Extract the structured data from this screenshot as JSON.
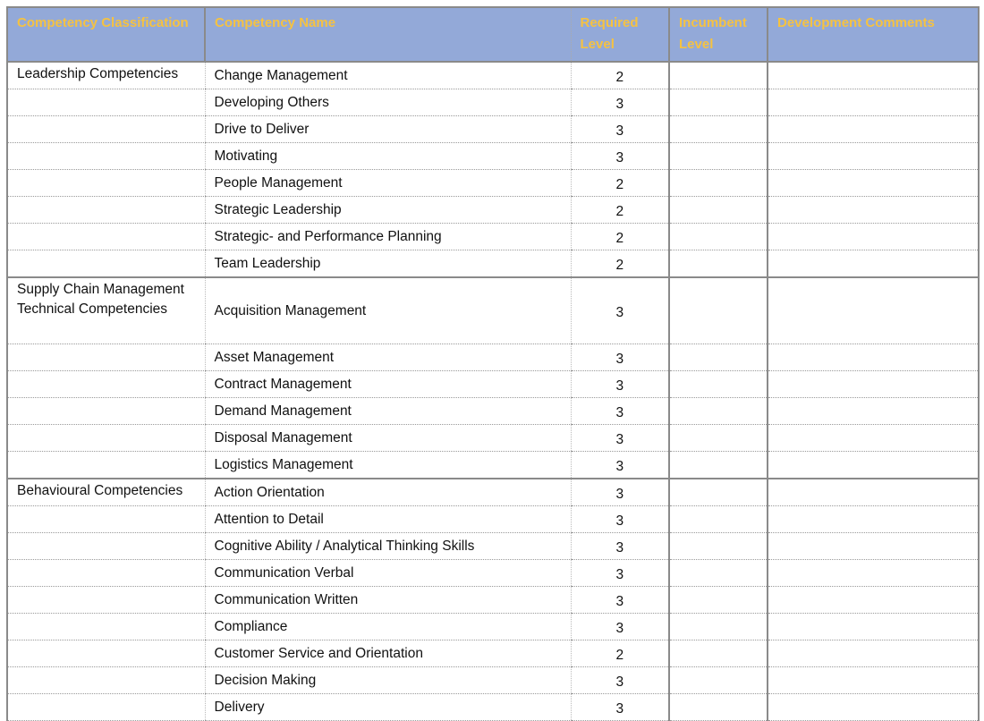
{
  "headers": [
    "Competency Classification",
    "Competency Name",
    "Required Level",
    "Incumbent Level",
    "Development Comments"
  ],
  "colors": {
    "header_bg": "#93a9d8",
    "header_text": "#f5c242",
    "border": "#8a8a8a"
  },
  "sections": [
    {
      "classification": "Leadership Competencies",
      "rows": [
        {
          "name": "Change Management",
          "level": "2"
        },
        {
          "name": "Developing Others",
          "level": "3"
        },
        {
          "name": "Drive to Deliver",
          "level": "3"
        },
        {
          "name": "Motivating",
          "level": "3"
        },
        {
          "name": "People Management",
          "level": "2"
        },
        {
          "name": "Strategic Leadership",
          "level": "2"
        },
        {
          "name": "Strategic- and Performance Planning",
          "level": "2"
        },
        {
          "name": "Team Leadership",
          "level": "2"
        }
      ]
    },
    {
      "classification": "Supply Chain Management Technical Competencies",
      "rows": [
        {
          "name": "Acquisition Management",
          "level": "3"
        },
        {
          "name": "Asset Management",
          "level": "3"
        },
        {
          "name": "Contract Management",
          "level": "3"
        },
        {
          "name": "Demand Management",
          "level": "3"
        },
        {
          "name": "Disposal Management",
          "level": "3"
        },
        {
          "name": "Logistics Management",
          "level": "3"
        }
      ]
    },
    {
      "classification": "Behavioural Competencies",
      "rows": [
        {
          "name": "Action Orientation",
          "level": "3"
        },
        {
          "name": "Attention to Detail",
          "level": "3"
        },
        {
          "name": "Cognitive Ability / Analytical Thinking Skills",
          "level": "3"
        },
        {
          "name": "Communication Verbal",
          "level": "3"
        },
        {
          "name": "Communication Written",
          "level": "3"
        },
        {
          "name": "Compliance",
          "level": "3"
        },
        {
          "name": "Customer Service and Orientation",
          "level": "2"
        },
        {
          "name": "Decision Making",
          "level": "3"
        },
        {
          "name": "Delivery",
          "level": "3"
        }
      ]
    }
  ]
}
